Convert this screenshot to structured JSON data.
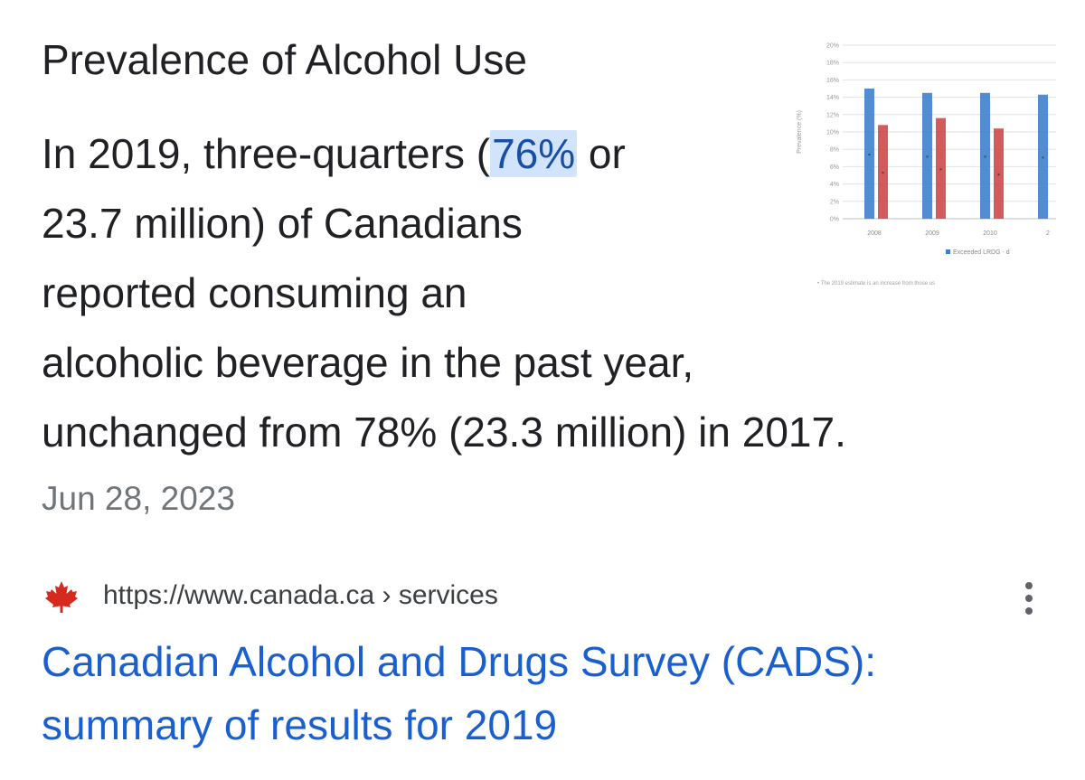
{
  "snippet": {
    "title": "Prevalence of Alcohol Use",
    "body": {
      "line1_pre": "In 2019, three-quarters (",
      "line1_highlight": "76%",
      "line1_post": " or",
      "line2": "23.7 million) of Canadians",
      "line3": "reported consuming an",
      "line4": "alcoholic beverage in the past year,",
      "line5": "unchanged from 78% (23.3 million) in 2017."
    },
    "date": "Jun 28, 2023"
  },
  "thumbnail": {
    "chart_data": {
      "type": "bar",
      "categories": [
        "2008",
        "2009",
        "2010",
        "2"
      ],
      "series": [
        {
          "name": "Exceeded LRDG",
          "values": [
            15,
            14.5,
            14.5,
            14.3
          ]
        },
        {
          "values": [
            10.8,
            11.6,
            10.4,
            null
          ]
        }
      ],
      "ylabel": "Prevalence (%)",
      "ylim": [
        0,
        20
      ],
      "yticks": [
        "0%",
        "2%",
        "4%",
        "6%",
        "8%",
        "10%",
        "12%",
        "14%",
        "16%",
        "18%",
        "20%"
      ],
      "legend": "Exceeded LRDG - d",
      "footnote": "• The 2019 estimate is an increase from those us",
      "colors": {
        "blue": "#3f7fd0",
        "red": "#d0484a"
      }
    }
  },
  "result": {
    "source_icon": "maple-leaf-icon",
    "url": "https://www.canada.ca › services",
    "title_line1": "Canadian Alcohol and Drugs Survey (CADS):",
    "title_line2": "summary of results for 2019"
  }
}
